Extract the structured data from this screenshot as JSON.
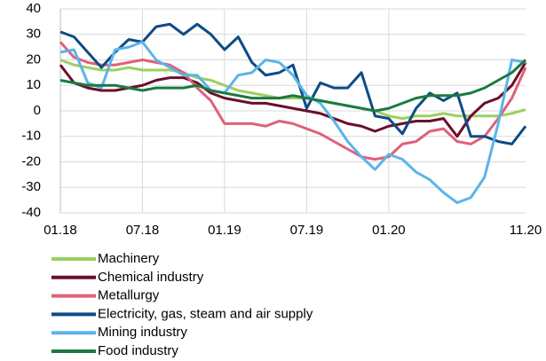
{
  "chart_data": {
    "type": "line",
    "categories": [
      "01.18",
      null,
      null,
      null,
      null,
      null,
      "07.18",
      null,
      null,
      null,
      null,
      null,
      "01.19",
      null,
      null,
      null,
      null,
      null,
      "07.19",
      null,
      null,
      null,
      null,
      null,
      "01.20",
      null,
      null,
      null,
      null,
      null,
      null,
      null,
      null,
      null,
      "11.20"
    ],
    "series": [
      {
        "name": "Machinery",
        "color": "#9bd05f",
        "values": [
          20,
          18,
          17,
          16,
          16,
          17,
          16,
          16,
          16,
          15,
          13,
          12,
          10,
          8,
          7,
          6,
          5,
          5,
          5,
          4,
          3,
          2,
          1,
          0,
          -2,
          -3,
          -2,
          -2,
          -1,
          -2,
          -2,
          -2,
          -2,
          -1,
          0.5
        ]
      },
      {
        "name": "Chemical industry",
        "color": "#6b0f2b",
        "values": [
          18,
          11,
          9,
          8,
          8,
          9,
          10,
          12,
          13,
          13,
          11,
          7,
          5,
          4,
          3,
          3,
          2,
          1,
          0,
          -1,
          -3,
          -5,
          -6,
          -8,
          -6,
          -5,
          -4,
          -4,
          -3,
          -10,
          -2,
          3,
          5,
          10,
          19
        ]
      },
      {
        "name": "Metallurgy",
        "color": "#e0607a",
        "values": [
          27,
          21,
          19,
          18,
          18,
          19,
          20,
          19,
          18,
          15,
          9,
          4,
          -5,
          -5,
          -5,
          -6,
          -4,
          -5,
          -7,
          -9,
          -12,
          -15,
          -18,
          -19,
          -18,
          -13,
          -12,
          -8,
          -7,
          -12,
          -13,
          -10,
          -3,
          5,
          17
        ]
      },
      {
        "name": "Electricity, gas, steam and air supply",
        "color": "#0d4c86",
        "values": [
          31,
          29,
          23,
          17,
          23,
          28,
          27,
          33,
          34,
          30,
          34,
          30,
          24,
          29,
          19,
          14,
          15,
          18,
          1,
          11,
          9,
          9,
          15,
          -2,
          -3,
          -9,
          1,
          7,
          4,
          7,
          -10,
          -10,
          -12,
          -13,
          -6
        ]
      },
      {
        "name": "Mining industry",
        "color": "#5bb5e8",
        "values": [
          23,
          24,
          11,
          9,
          24,
          25,
          27,
          20,
          17,
          14,
          14,
          8,
          7,
          14,
          15,
          20,
          19,
          14,
          6,
          3,
          -4,
          -12,
          -18,
          -23,
          -17,
          -19,
          -24,
          -27,
          -32,
          -36,
          -34,
          -26,
          -5,
          20,
          19
        ]
      },
      {
        "name": "Food industry",
        "color": "#1b7a3e",
        "values": [
          12,
          11,
          10,
          10,
          10,
          9,
          8,
          9,
          9,
          9,
          10,
          8,
          7,
          6,
          5,
          5,
          5,
          6,
          5,
          4,
          3,
          2,
          1,
          0,
          1,
          3,
          5,
          6,
          6,
          6,
          7,
          9,
          12,
          15,
          20
        ]
      }
    ],
    "ylim": [
      -40,
      40
    ],
    "yticks": [
      -40,
      -30,
      -20,
      -10,
      0,
      10,
      20,
      30,
      40
    ],
    "grid": true
  }
}
